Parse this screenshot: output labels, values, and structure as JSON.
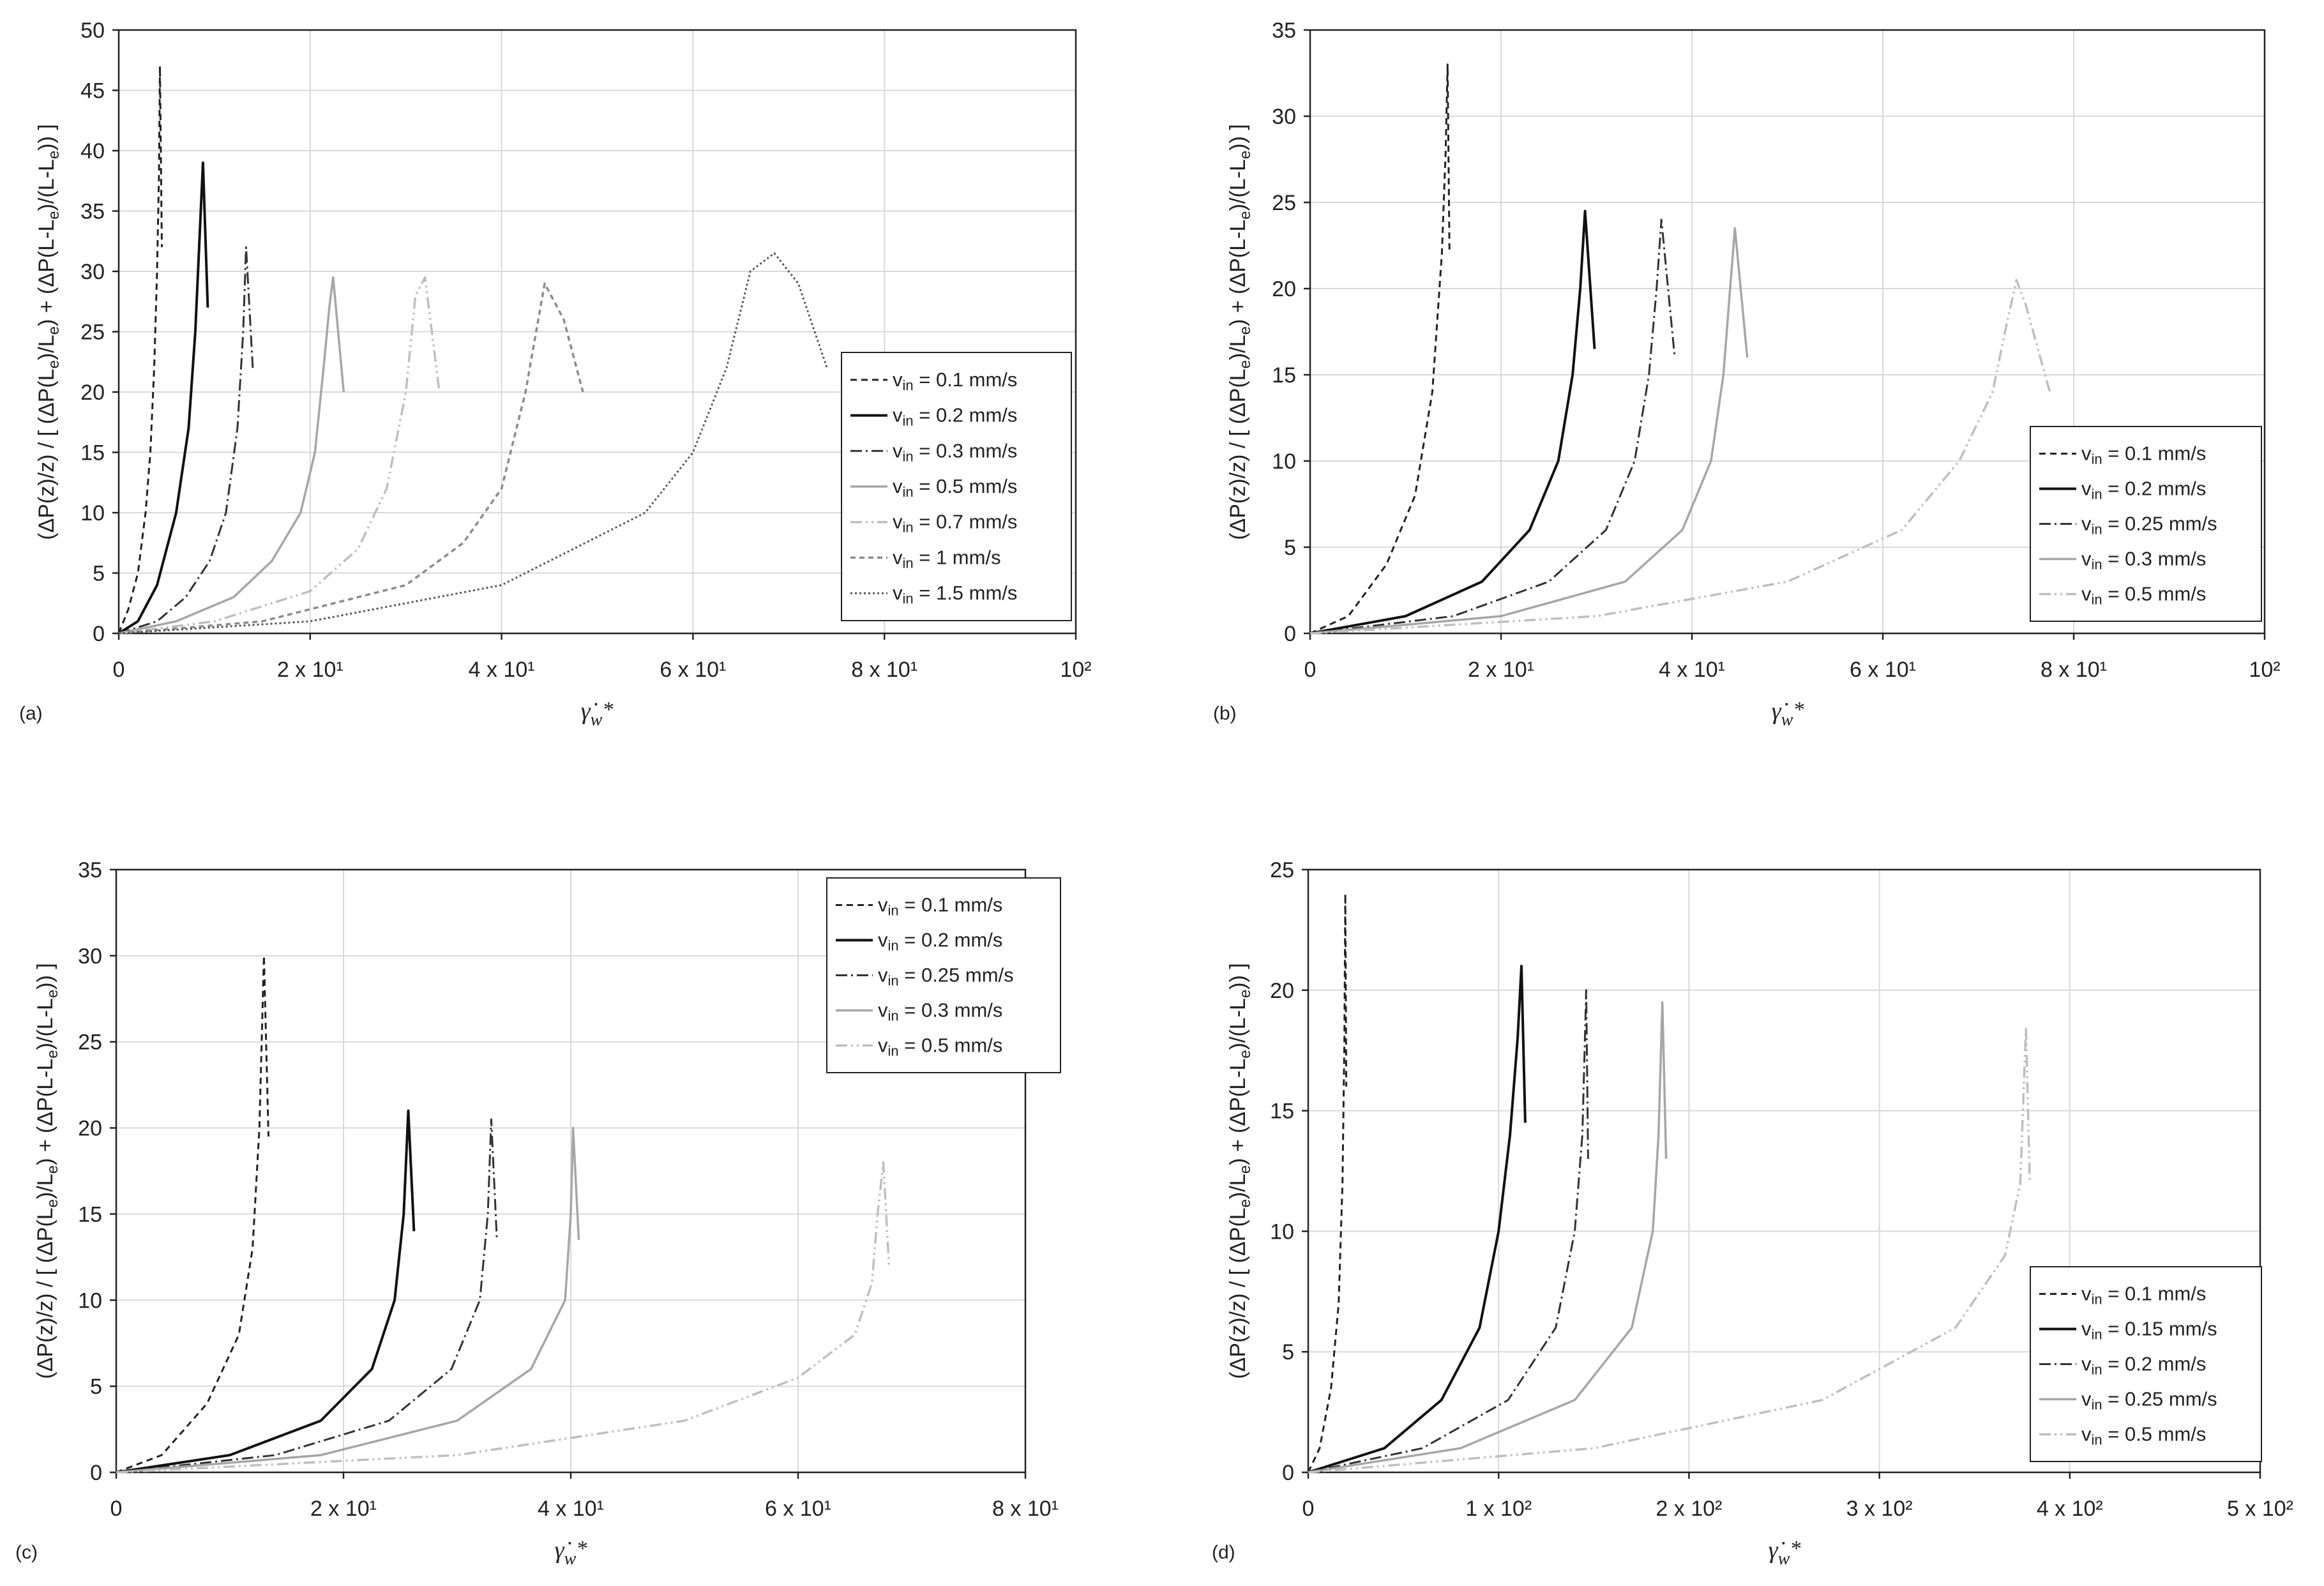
{
  "colors": {
    "axis": "#222222",
    "grid": "#d9d9d9"
  },
  "y_label": "(ΔP(z)/z) / [ (ΔP(Le)/Le) + (ΔP(L-Le)/(L-Le)) ]",
  "y_label_parts": {
    "a": "(ΔP(z)/z) / [ (ΔP(L",
    "b": "e",
    "c": ")/L",
    "d": "e",
    "e": ") + (ΔP(L-L",
    "f": "e",
    "g": ")/(L-L",
    "h": "e",
    "i": ")) ]"
  },
  "x_label": "γ̇w*",
  "x_label_parts": {
    "main": "γ̇",
    "sub": "w",
    "sup": "*"
  },
  "legend_sub": "in",
  "chart_data": [
    {
      "id": "a",
      "panel_label": "(a)",
      "type": "line",
      "xlim": [
        0,
        100
      ],
      "ylim": [
        0,
        50
      ],
      "xticks": [
        0,
        20,
        40,
        60,
        80,
        100
      ],
      "xtick_labels": [
        "0",
        "2 x 10¹",
        "4 x 10¹",
        "6 x 10¹",
        "8 x 10¹",
        "10²"
      ],
      "yticks": [
        0,
        5,
        10,
        15,
        20,
        25,
        30,
        35,
        40,
        45,
        50
      ],
      "ytick_labels": [
        "0",
        "5",
        "10",
        "15",
        "20",
        "25",
        "30",
        "35",
        "40",
        "45",
        "50"
      ],
      "legend_position": "right",
      "series": [
        {
          "name": "vin = 0.1 mm/s",
          "legend_text": " = 0.1 mm/s",
          "color": "#222222",
          "dash": "10,7",
          "width": 3,
          "x": [
            0,
            1.0,
            2.0,
            2.8,
            3.3,
            3.7,
            4.0,
            4.2,
            4.3,
            4.5
          ],
          "y": [
            0,
            2.0,
            5.0,
            10.0,
            15.0,
            22.0,
            30.0,
            38.0,
            47.0,
            32.0
          ]
        },
        {
          "name": "vin = 0.2 mm/s",
          "legend_text": " = 0.2 mm/s",
          "color": "#111111",
          "dash": "",
          "width": 4,
          "x": [
            0,
            2.0,
            4.0,
            6.0,
            7.3,
            8.0,
            8.4,
            8.8,
            9.3
          ],
          "y": [
            0,
            1.0,
            4.0,
            10.0,
            17.0,
            25.0,
            32.0,
            39.0,
            27.0
          ]
        },
        {
          "name": "vin = 0.3 mm/s",
          "legend_text": " = 0.3 mm/s",
          "color": "#333333",
          "dash": "18,6,3,6",
          "width": 3,
          "x": [
            0,
            4.0,
            7.0,
            9.5,
            11.2,
            12.4,
            13.0,
            13.3,
            14.0
          ],
          "y": [
            0,
            1.0,
            3.0,
            6.0,
            10.0,
            17.0,
            25.0,
            32.0,
            22.0
          ]
        },
        {
          "name": "vin = 0.5 mm/s",
          "legend_text": " = 0.5 mm/s",
          "color": "#a6a6a6",
          "dash": "",
          "width": 3.5,
          "x": [
            0,
            6.0,
            12.0,
            16.0,
            19.0,
            20.5,
            21.4,
            22.0,
            22.4,
            23.5
          ],
          "y": [
            0,
            1.0,
            3.0,
            6.0,
            10.0,
            15.0,
            22.0,
            27.0,
            29.5,
            20.0
          ]
        },
        {
          "name": "vin = 0.7 mm/s",
          "legend_text": " = 0.7 mm/s",
          "color": "#bfbfbf",
          "dash": "18,6,3,6,3,6",
          "width": 3.5,
          "x": [
            0,
            10.0,
            20.0,
            25.0,
            28.0,
            30.0,
            31.0,
            32.0,
            33.5
          ],
          "y": [
            0,
            1.0,
            3.5,
            7.0,
            12.0,
            20.0,
            28.0,
            29.5,
            20.0
          ]
        },
        {
          "name": "vin = 1 mm/s",
          "legend_text": " = 1 mm/s",
          "color": "#8c8c8c",
          "dash": "8,6",
          "width": 3.5,
          "x": [
            0,
            15.0,
            30.0,
            36.0,
            40.0,
            42.5,
            44.5,
            46.5,
            48.5
          ],
          "y": [
            0,
            1.0,
            4.0,
            7.5,
            12.0,
            20.0,
            29.0,
            26.0,
            20.0
          ]
        },
        {
          "name": "vin = 1.5 mm/s",
          "legend_text": " = 1.5 mm/s",
          "color": "#555555",
          "dash": "3,4",
          "width": 3,
          "x": [
            0,
            20.0,
            40.0,
            55.0,
            60.0,
            63.5,
            66.0,
            68.5,
            71.0,
            74.0
          ],
          "y": [
            0,
            1.0,
            4.0,
            10.0,
            15.0,
            22.0,
            30.0,
            31.5,
            29.0,
            22.0
          ]
        }
      ]
    },
    {
      "id": "b",
      "panel_label": "(b)",
      "type": "line",
      "xlim": [
        0,
        100
      ],
      "ylim": [
        0,
        35
      ],
      "xticks": [
        0,
        20,
        40,
        60,
        80,
        100
      ],
      "xtick_labels": [
        "0",
        "2 x 10¹",
        "4 x 10¹",
        "6 x 10¹",
        "8 x 10¹",
        "10²"
      ],
      "yticks": [
        0,
        5,
        10,
        15,
        20,
        25,
        30,
        35
      ],
      "ytick_labels": [
        "0",
        "5",
        "10",
        "15",
        "20",
        "25",
        "30",
        "35"
      ],
      "legend_position": "bottom-right",
      "series": [
        {
          "name": "vin = 0.1 mm/s",
          "legend_text": " = 0.1 mm/s",
          "color": "#222222",
          "dash": "10,7",
          "width": 3,
          "x": [
            0,
            4.0,
            8.0,
            11.0,
            12.8,
            13.8,
            14.2,
            14.4,
            14.6
          ],
          "y": [
            0,
            1.0,
            4.0,
            8.0,
            14.0,
            22.0,
            28.0,
            33.0,
            22.0
          ]
        },
        {
          "name": "vin = 0.2 mm/s",
          "legend_text": " = 0.2 mm/s",
          "color": "#111111",
          "dash": "",
          "width": 4,
          "x": [
            0,
            10.0,
            18.0,
            23.0,
            26.0,
            27.5,
            28.3,
            28.8,
            29.8
          ],
          "y": [
            0,
            1.0,
            3.0,
            6.0,
            10.0,
            15.0,
            20.0,
            24.5,
            16.5
          ]
        },
        {
          "name": "vin = 0.25 mm/s",
          "legend_text": " = 0.25 mm/s",
          "color": "#333333",
          "dash": "18,6,3,6",
          "width": 3,
          "x": [
            0,
            15.0,
            25.0,
            31.0,
            34.0,
            35.5,
            36.3,
            36.8,
            38.2
          ],
          "y": [
            0,
            1.0,
            3.0,
            6.0,
            10.0,
            15.0,
            20.0,
            24.0,
            16.0
          ]
        },
        {
          "name": "vin = 0.3 mm/s",
          "legend_text": " = 0.3 mm/s",
          "color": "#a6a6a6",
          "dash": "",
          "width": 3.5,
          "x": [
            0,
            20.0,
            33.0,
            39.0,
            42.0,
            43.3,
            44.0,
            44.5,
            45.8
          ],
          "y": [
            0,
            1.0,
            3.0,
            6.0,
            10.0,
            15.0,
            20.0,
            23.5,
            16.0
          ]
        },
        {
          "name": "vin = 0.5 mm/s",
          "legend_text": " = 0.5 mm/s",
          "color": "#bfbfbf",
          "dash": "18,6,3,6,3,6",
          "width": 3.5,
          "x": [
            0,
            30.0,
            50.0,
            62.0,
            68.0,
            71.5,
            73.0,
            74.0,
            75.0,
            77.5
          ],
          "y": [
            0,
            1.0,
            3.0,
            6.0,
            10.0,
            14.0,
            18.0,
            20.5,
            19.0,
            14.0
          ]
        }
      ]
    },
    {
      "id": "c",
      "panel_label": "(c)",
      "type": "line",
      "xlim": [
        0,
        80
      ],
      "ylim": [
        0,
        35
      ],
      "xticks": [
        0,
        20,
        40,
        60,
        80
      ],
      "xtick_labels": [
        "0",
        "2 x 10¹",
        "4 x 10¹",
        "6 x 10¹",
        "8 x 10¹"
      ],
      "yticks": [
        0,
        5,
        10,
        15,
        20,
        25,
        30,
        35
      ],
      "ytick_labels": [
        "0",
        "5",
        "10",
        "15",
        "20",
        "25",
        "30",
        "35"
      ],
      "legend_position": "top-right",
      "series": [
        {
          "name": "vin = 0.1 mm/s",
          "legend_text": " = 0.1 mm/s",
          "color": "#222222",
          "dash": "10,7",
          "width": 3,
          "x": [
            0,
            4.0,
            8.0,
            10.8,
            12.0,
            12.6,
            13.0,
            13.4
          ],
          "y": [
            0,
            1.0,
            4.0,
            8.0,
            13.0,
            20.0,
            30.0,
            19.5
          ]
        },
        {
          "name": "vin = 0.2 mm/s",
          "legend_text": " = 0.2 mm/s",
          "color": "#111111",
          "dash": "",
          "width": 4,
          "x": [
            0,
            10.0,
            18.0,
            22.5,
            24.5,
            25.3,
            25.7,
            26.2
          ],
          "y": [
            0,
            1.0,
            3.0,
            6.0,
            10.0,
            15.0,
            21.0,
            14.0
          ]
        },
        {
          "name": "vin = 0.25 mm/s",
          "legend_text": " = 0.25 mm/s",
          "color": "#333333",
          "dash": "18,6,3,6",
          "width": 3,
          "x": [
            0,
            14.0,
            24.0,
            29.5,
            32.0,
            32.7,
            33.0,
            33.5
          ],
          "y": [
            0,
            1.0,
            3.0,
            6.0,
            10.0,
            15.0,
            20.5,
            13.5
          ]
        },
        {
          "name": "vin = 0.3 mm/s",
          "legend_text": " = 0.3 mm/s",
          "color": "#a6a6a6",
          "dash": "",
          "width": 3.5,
          "x": [
            0,
            18.0,
            30.0,
            36.5,
            39.5,
            40.0,
            40.2,
            40.7
          ],
          "y": [
            0,
            1.0,
            3.0,
            6.0,
            10.0,
            15.0,
            20.0,
            13.5
          ]
        },
        {
          "name": "vin = 0.5 mm/s",
          "legend_text": " = 0.5 mm/s",
          "color": "#bfbfbf",
          "dash": "18,6,3,6,3,6",
          "width": 3.5,
          "x": [
            0,
            30.0,
            50.0,
            60.0,
            65.0,
            66.5,
            67.0,
            67.5,
            68.0
          ],
          "y": [
            0,
            1.0,
            3.0,
            5.5,
            8.0,
            11.0,
            15.0,
            18.0,
            12.0
          ]
        }
      ]
    },
    {
      "id": "d",
      "panel_label": "(d)",
      "type": "line",
      "xlim": [
        0,
        500
      ],
      "ylim": [
        0,
        25
      ],
      "xticks": [
        0,
        100,
        200,
        300,
        400,
        500
      ],
      "xtick_labels": [
        "0",
        "1 x 10²",
        "2 x 10²",
        "3 x 10²",
        "4 x 10²",
        "5 x 10²"
      ],
      "yticks": [
        0,
        5,
        10,
        15,
        20,
        25
      ],
      "ytick_labels": [
        "0",
        "5",
        "10",
        "15",
        "20",
        "25"
      ],
      "legend_position": "bottom-right",
      "series": [
        {
          "name": "vin = 0.1 mm/s",
          "legend_text": " = 0.1 mm/s",
          "color": "#222222",
          "dash": "10,7",
          "width": 3,
          "x": [
            0,
            6.0,
            12.0,
            16.0,
            18.0,
            19.0,
            19.5,
            20.0
          ],
          "y": [
            0,
            1.0,
            3.5,
            7.0,
            12.0,
            18.0,
            24.0,
            16.0
          ]
        },
        {
          "name": "vin = 0.15 mm/s",
          "legend_text": " = 0.15 mm/s",
          "color": "#111111",
          "dash": "",
          "width": 4,
          "x": [
            0,
            40.0,
            70.0,
            90.0,
            100.0,
            106.0,
            110.0,
            112.0,
            114.0
          ],
          "y": [
            0,
            1.0,
            3.0,
            6.0,
            10.0,
            14.0,
            18.0,
            21.0,
            14.5
          ]
        },
        {
          "name": "vin = 0.2 mm/s",
          "legend_text": " = 0.2 mm/s",
          "color": "#333333",
          "dash": "18,6,3,6",
          "width": 3,
          "x": [
            0,
            60.0,
            105.0,
            130.0,
            140.0,
            144.0,
            146.0,
            147.0
          ],
          "y": [
            0,
            1.0,
            3.0,
            6.0,
            10.0,
            14.0,
            20.0,
            13.0
          ]
        },
        {
          "name": "vin = 0.25 mm/s",
          "legend_text": " = 0.25 mm/s",
          "color": "#a6a6a6",
          "dash": "",
          "width": 3.5,
          "x": [
            0,
            80.0,
            140.0,
            170.0,
            181.0,
            184.0,
            186.0,
            188.0
          ],
          "y": [
            0,
            1.0,
            3.0,
            6.0,
            10.0,
            14.0,
            19.5,
            13.0
          ]
        },
        {
          "name": "vin = 0.5 mm/s",
          "legend_text": " = 0.5 mm/s",
          "color": "#bfbfbf",
          "dash": "18,6,3,6,3,6",
          "width": 3.5,
          "x": [
            0,
            150.0,
            270.0,
            340.0,
            366.0,
            374.0,
            377.0,
            379.0
          ],
          "y": [
            0,
            1.0,
            3.0,
            6.0,
            9.0,
            12.0,
            18.5,
            12.0
          ]
        }
      ]
    }
  ]
}
